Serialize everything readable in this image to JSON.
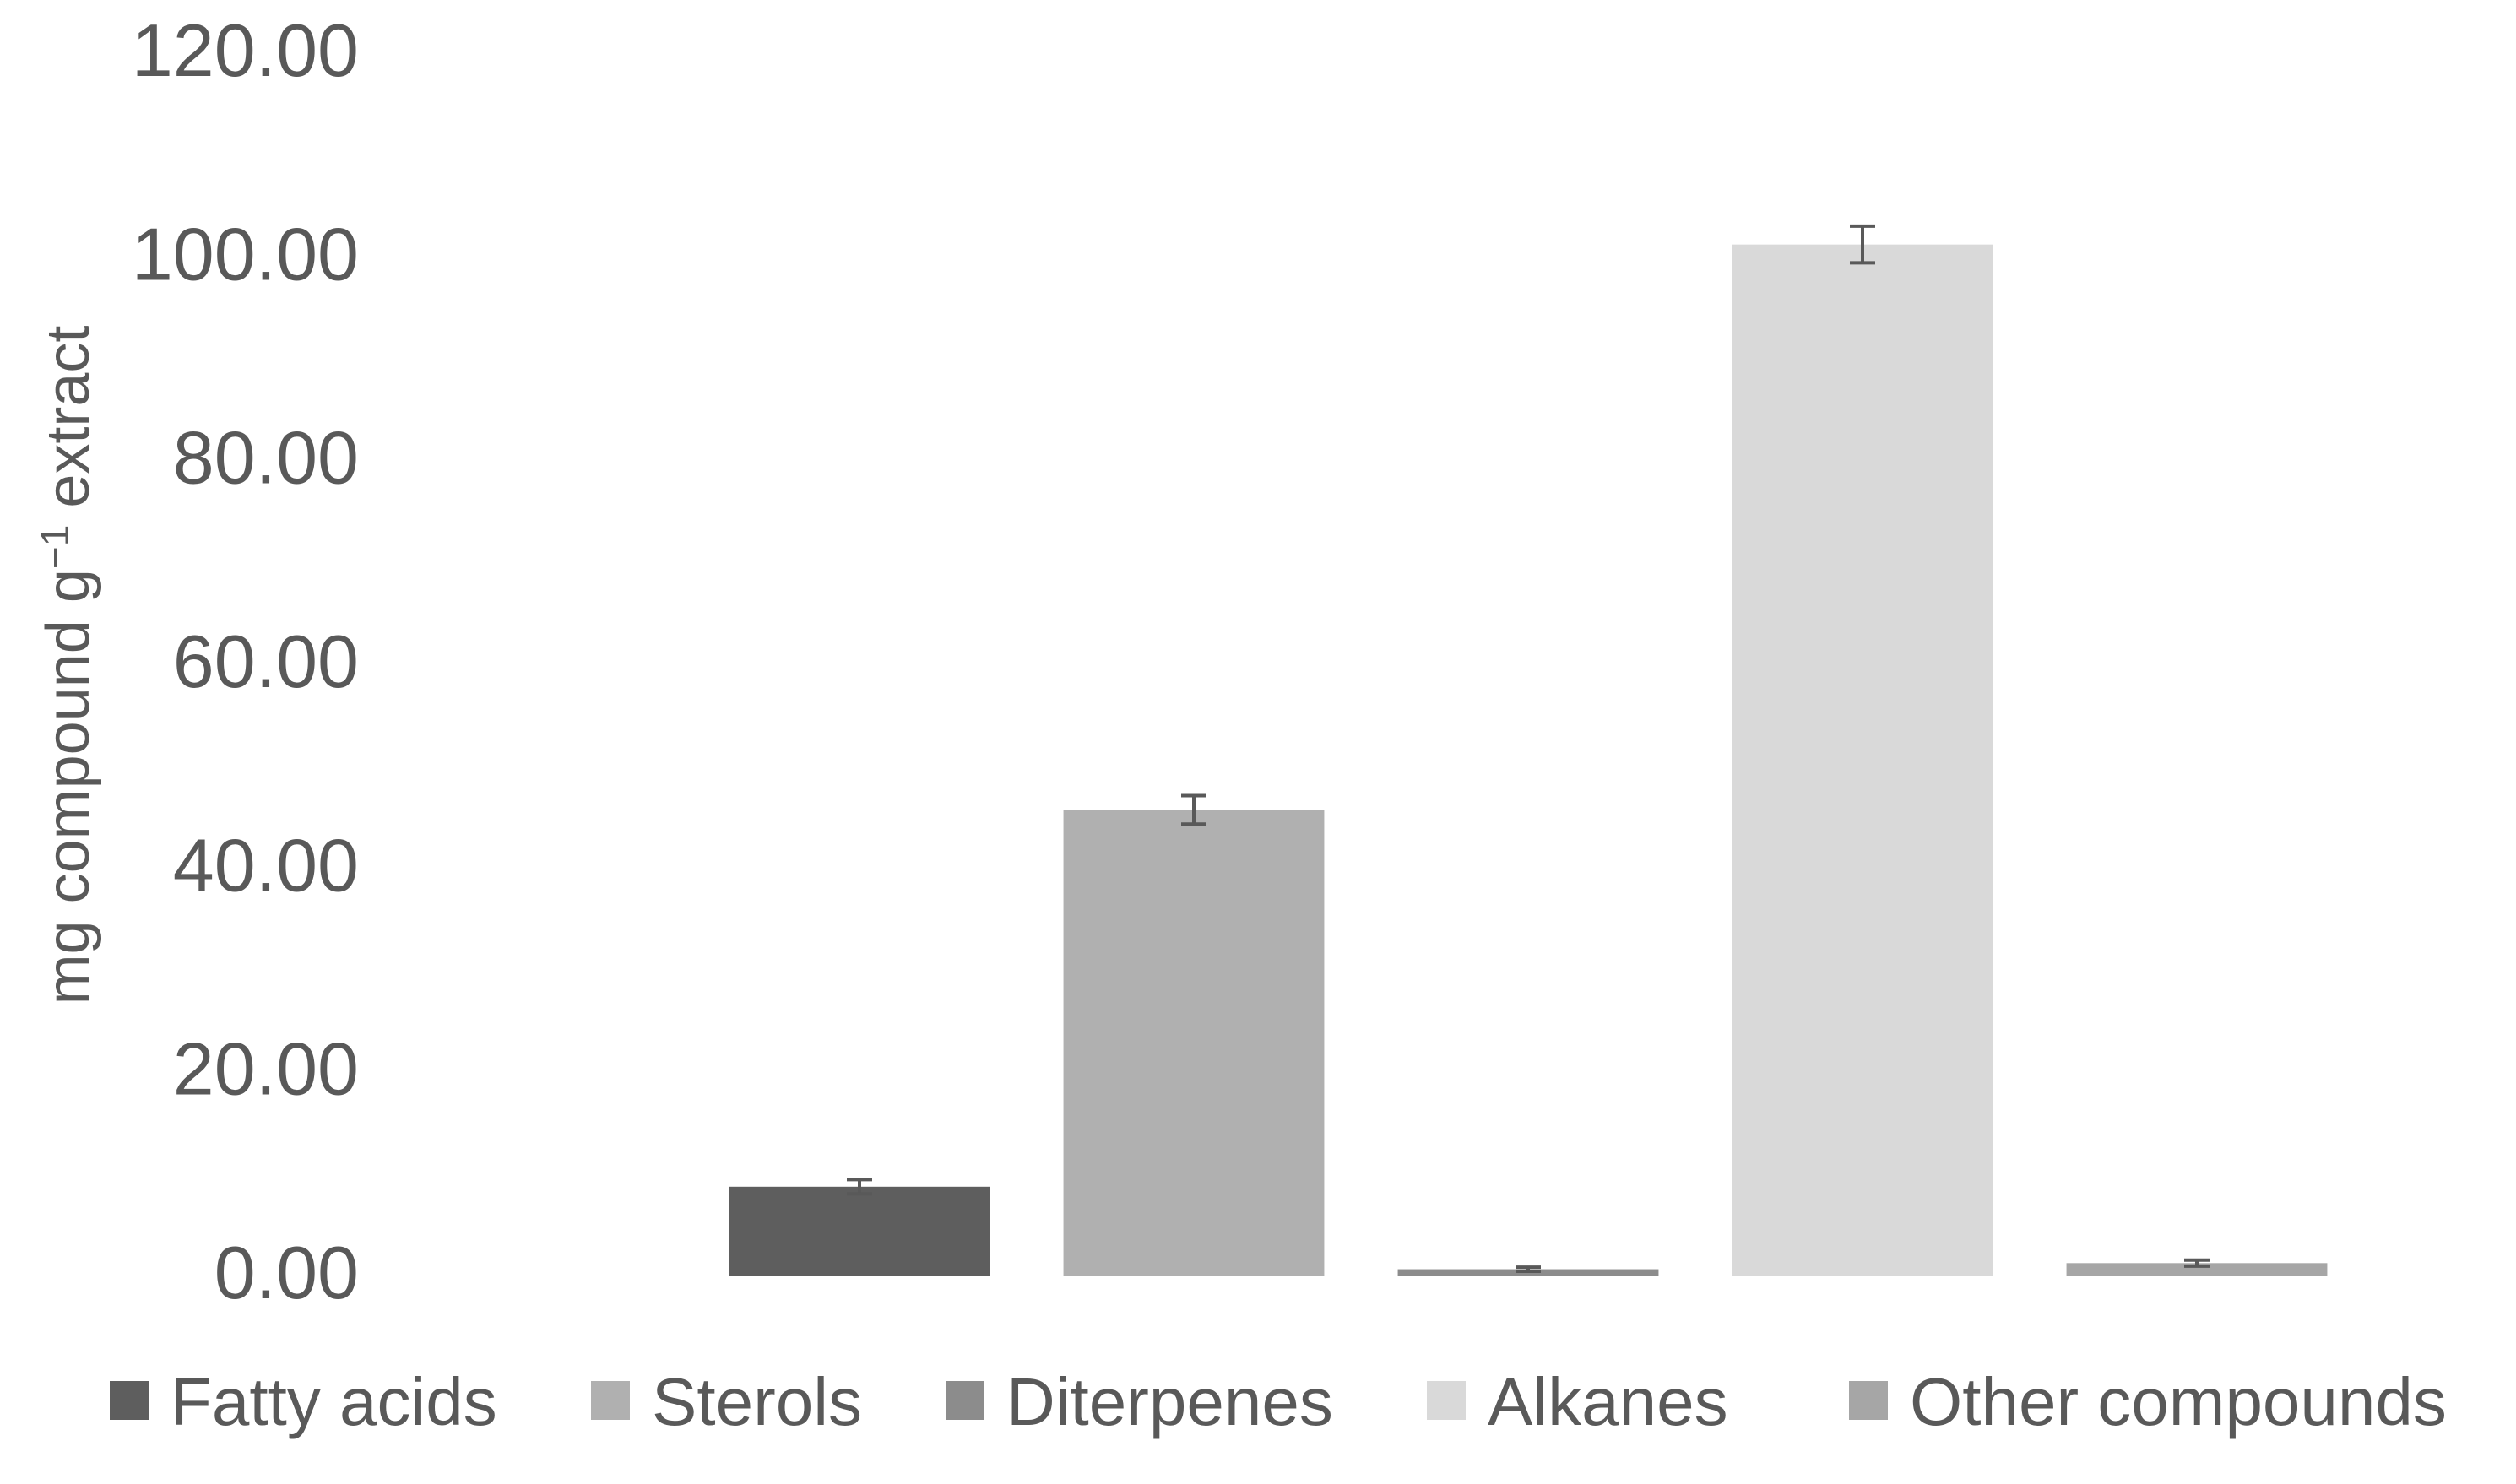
{
  "chart_data": {
    "type": "bar",
    "title": "",
    "xlabel": "",
    "ylabel": {
      "prefix": "mg compound g",
      "superscript": "−1",
      "suffix": " extract"
    },
    "ylim": [
      0,
      120
    ],
    "yticks": [
      "0.00",
      "20.00",
      "40.00",
      "60.00",
      "80.00",
      "100.00",
      "120.00"
    ],
    "grid": false,
    "legend_position": "bottom",
    "categories": [
      "Fatty acids",
      "Sterols",
      "Diterpenes",
      "Alkanes",
      "Other compounds"
    ],
    "series": [
      {
        "name": "Fatty acids",
        "value": 8.8,
        "error": 0.7,
        "color": "#5e5e5e"
      },
      {
        "name": "Sterols",
        "value": 45.8,
        "error": 1.4,
        "color": "#b0b0b0"
      },
      {
        "name": "Diterpenes",
        "value": 0.7,
        "error": 0.2,
        "color": "#8c8c8c"
      },
      {
        "name": "Alkanes",
        "value": 101.3,
        "error": 1.8,
        "color": "#d9d9d9"
      },
      {
        "name": "Other compounds",
        "value": 1.3,
        "error": 0.3,
        "color": "#a6a6a6"
      }
    ],
    "colors": {
      "text": "#595959",
      "error_bar": "#595959"
    }
  }
}
